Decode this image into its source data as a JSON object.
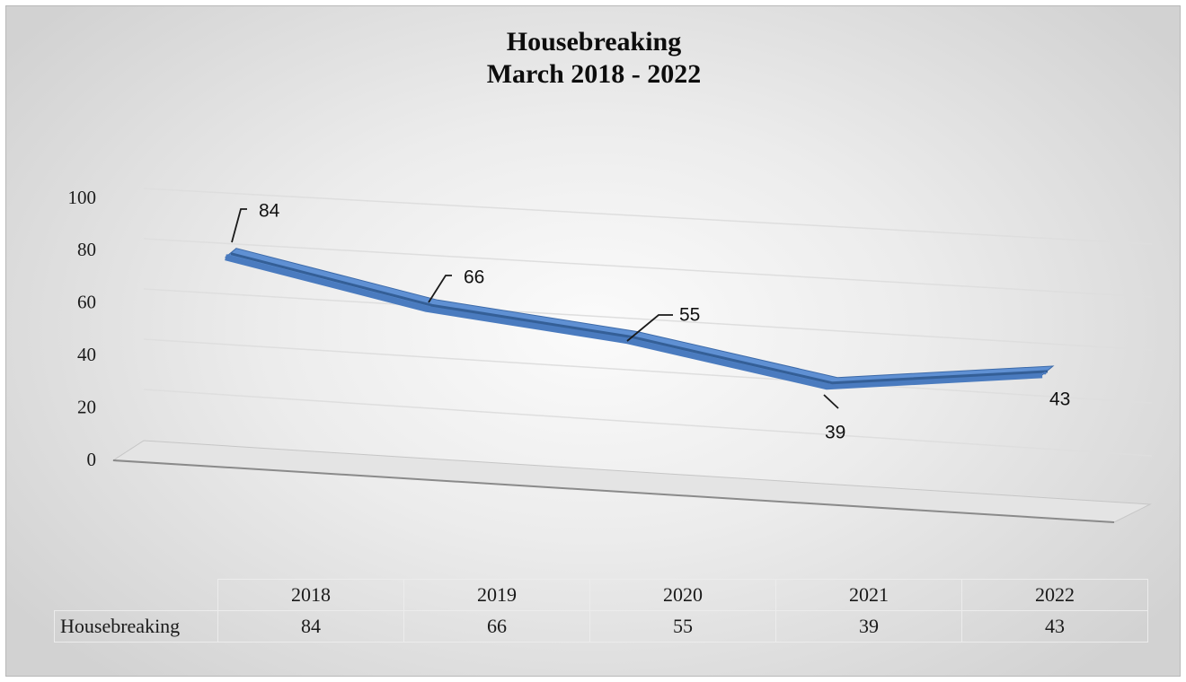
{
  "chart_data": {
    "type": "line",
    "title": [
      "Housebreaking",
      "March 2018 - 2022"
    ],
    "categories": [
      "2018",
      "2019",
      "2020",
      "2021",
      "2022"
    ],
    "series": [
      {
        "name": "Housebreaking",
        "values": [
          84,
          66,
          55,
          39,
          43
        ],
        "color": "#4a7bbf"
      }
    ],
    "data_labels": [
      "84",
      "66",
      "55",
      "39",
      "43"
    ],
    "y_ticks": [
      "0",
      "20",
      "40",
      "60",
      "80",
      "100"
    ],
    "ylim": [
      0,
      100
    ],
    "grid": true,
    "style": "3d-line",
    "data_table": true
  }
}
